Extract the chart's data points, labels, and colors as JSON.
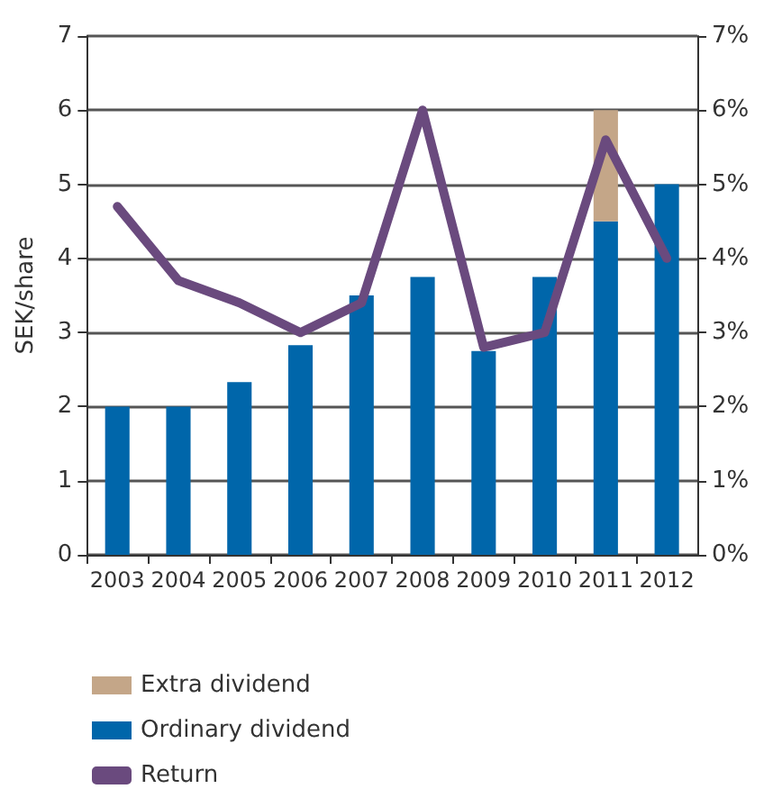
{
  "chart_data": {
    "type": "bar",
    "ylabel": "SEK/share",
    "categories": [
      "2003",
      "2004",
      "2005",
      "2006",
      "2007",
      "2008",
      "2009",
      "2010",
      "2011",
      "2012"
    ],
    "stacked": true,
    "series": [
      {
        "name": "Ordinary dividend",
        "color": "#0066aa",
        "values": [
          2,
          2,
          2.33,
          2.83,
          3.5,
          3.75,
          2.75,
          3.75,
          4.5,
          5
        ]
      },
      {
        "name": "Extra dividend",
        "color": "#c4a688",
        "values": [
          null,
          null,
          null,
          null,
          null,
          null,
          null,
          null,
          1.5,
          null
        ]
      },
      {
        "name": "Return",
        "type": "line",
        "axis": "y2",
        "color": "#6a4a7e",
        "values": [
          4.7,
          3.7,
          3.4,
          3.0,
          3.4,
          6.0,
          2.8,
          3.0,
          5.6,
          4.0
        ]
      }
    ],
    "ylim": [
      0,
      7
    ],
    "yticks": [
      0,
      1,
      2,
      3,
      4,
      5,
      6,
      7
    ],
    "y2lim": [
      0,
      7
    ],
    "y2ticks": [
      {
        "value": 0,
        "label": "0%"
      },
      {
        "value": 1,
        "label": "1%"
      },
      {
        "value": 2,
        "label": "2%"
      },
      {
        "value": 3,
        "label": "3%"
      },
      {
        "value": 4,
        "label": "4%"
      },
      {
        "value": 5,
        "label": "5%"
      },
      {
        "value": 6,
        "label": "6%"
      },
      {
        "value": 7,
        "label": "7%"
      }
    ],
    "grid": "y",
    "legend": "bottom",
    "marker": "none",
    "line_style": "solid"
  }
}
